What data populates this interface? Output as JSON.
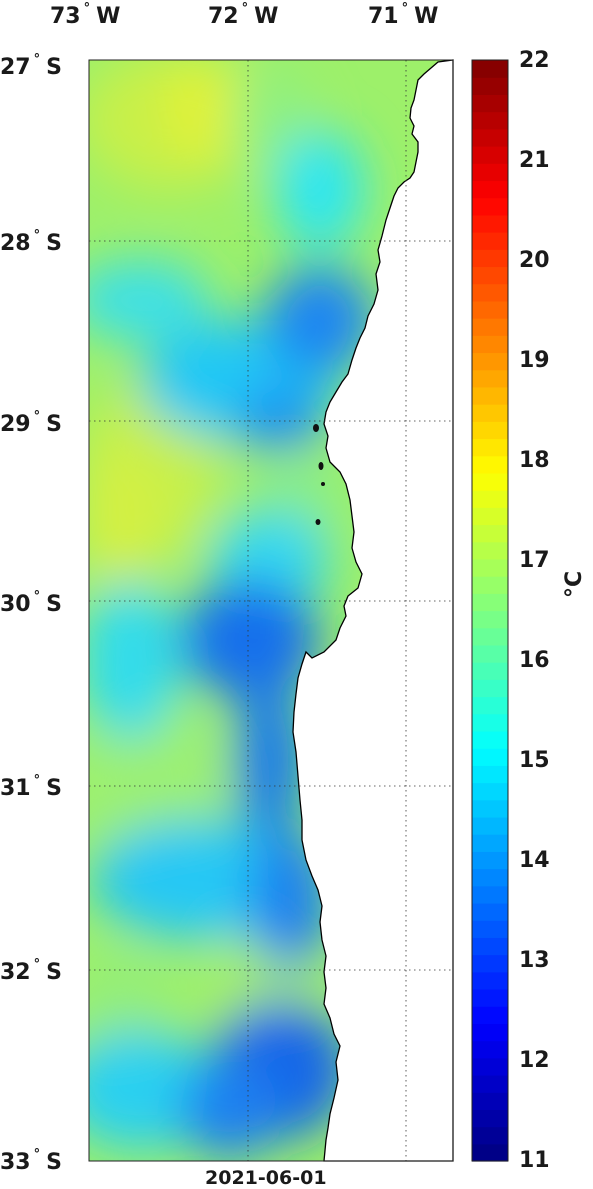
{
  "map": {
    "date": "2021-06-01",
    "longitude_labels": [
      {
        "value": "73",
        "hemi": "W"
      },
      {
        "value": "72",
        "hemi": "W"
      },
      {
        "value": "71",
        "hemi": "W"
      }
    ],
    "latitude_labels": [
      {
        "value": "27",
        "hemi": "S"
      },
      {
        "value": "28",
        "hemi": "S"
      },
      {
        "value": "29",
        "hemi": "S"
      },
      {
        "value": "30",
        "hemi": "S"
      },
      {
        "value": "31",
        "hemi": "S"
      },
      {
        "value": "32",
        "hemi": "S"
      },
      {
        "value": "33",
        "hemi": "S"
      }
    ],
    "degree_symbol": "°",
    "land_color": "#ffffff",
    "coast_color": "#000000",
    "grid": "dotted"
  },
  "colorbar": {
    "unit_label": "°C",
    "min": 11,
    "max": 22,
    "ticks": [
      "11",
      "12",
      "13",
      "14",
      "15",
      "16",
      "17",
      "18",
      "19",
      "20",
      "21",
      "22"
    ],
    "colormap": "jet"
  }
}
